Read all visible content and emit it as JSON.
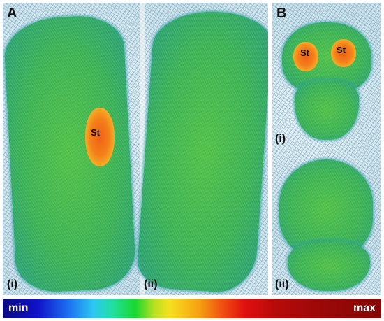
{
  "panel_a": {
    "letter": "A",
    "sub_i": "(i)",
    "sub_ii": "(ii)",
    "st": "St"
  },
  "panel_b": {
    "letter": "B",
    "sub_i": "(i)",
    "sub_ii": "(ii)",
    "st_left": "St",
    "st_right": "St"
  },
  "colorbar": {
    "min_label": "min",
    "max_label": "max"
  }
}
